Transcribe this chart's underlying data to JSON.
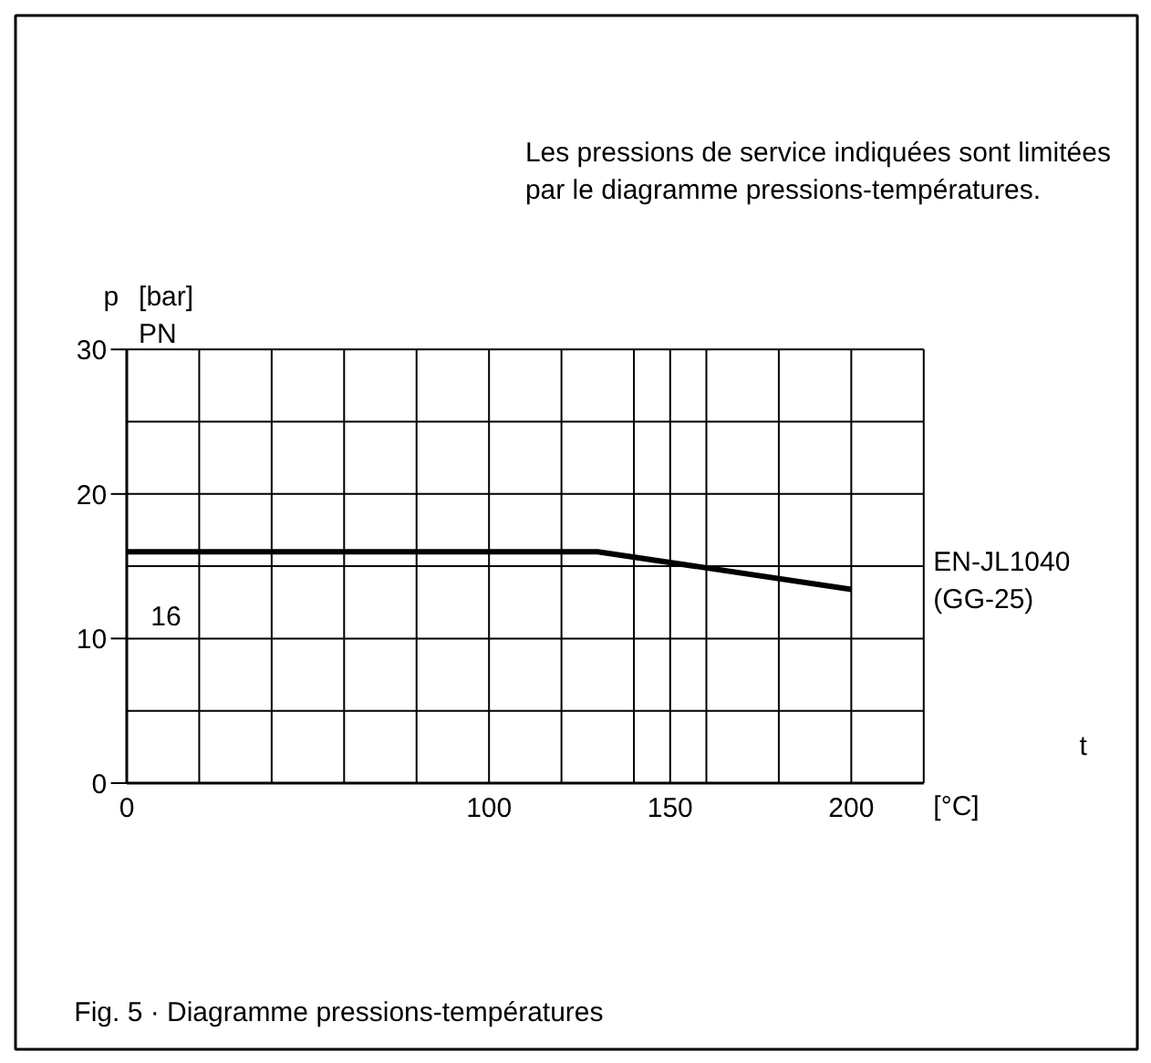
{
  "chart_data": {
    "type": "line",
    "xlabel": "t [°C]",
    "ylabel": "p [bar]",
    "annotations": [
      "Les pressions de service indiquées sont limitées\npar le diagramme pressions-températures.",
      "Fig. 5 · Diagramme pressions-températures",
      "PN",
      "16"
    ],
    "series": [
      {
        "name": "EN-JL1040\n(GG-25)",
        "color": "#000000",
        "x": [
          0,
          130,
          200
        ],
        "values": [
          16,
          16,
          13.4
        ]
      }
    ],
    "xlim": [
      0,
      220
    ],
    "ylim": [
      0,
      30
    ],
    "xticks": [
      0,
      {
        "value": 20,
        "label": null
      },
      {
        "value": 40,
        "label": null
      },
      {
        "value": 60,
        "label": null
      },
      {
        "value": 80,
        "label": null
      },
      100,
      {
        "value": 120,
        "label": null
      },
      {
        "value": 140,
        "label": null
      },
      150,
      {
        "value": 160,
        "label": null
      },
      {
        "value": 180,
        "label": null
      },
      200,
      {
        "value": 220,
        "label": null
      }
    ],
    "yticks": [
      0,
      {
        "value": 5,
        "label": null
      },
      10,
      {
        "value": 15,
        "label": null
      },
      20,
      {
        "value": 25,
        "label": null
      },
      30
    ],
    "grid": true
  }
}
